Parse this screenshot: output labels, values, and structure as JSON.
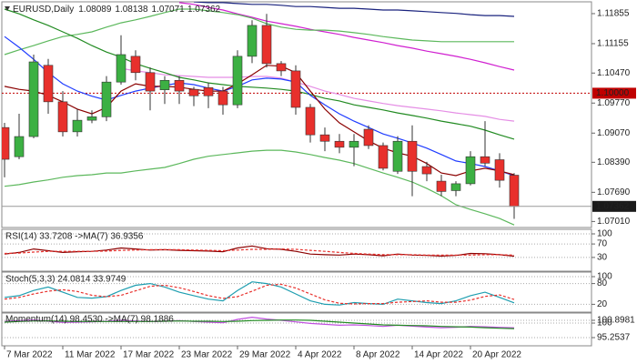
{
  "chart_data": [
    {
      "type": "candlestick",
      "title": "EURUSD,Daily",
      "categories": [
        "7 Mar 2022",
        null,
        null,
        null,
        "11 Mar 2022",
        null,
        null,
        null,
        "17 Mar 2022",
        null,
        null,
        null,
        "23 Mar 2022",
        null,
        null,
        null,
        "29 Mar 2022",
        null,
        null,
        null,
        "4 Apr 2022",
        null,
        null,
        null,
        "8 Apr 2022",
        null,
        null,
        null,
        "14 Apr 2022",
        null,
        null,
        null,
        "20 Apr 2022",
        null,
        null,
        null
      ],
      "open": [
        1.092,
        1.0852,
        1.0899,
        1.1065,
        1.098,
        1.091,
        1.0937,
        1.0945,
        1.1026,
        1.1086,
        1.1048,
        1.1008,
        1.103,
        1.1009,
        1.1013,
        1.1005,
        1.0973,
        1.1086,
        1.1158,
        1.1069,
        1.1052,
        1.0967,
        1.0903,
        1.0888,
        1.0874,
        1.0916,
        1.0878,
        1.0818,
        1.0888,
        1.0829,
        1.0795,
        1.0773,
        1.0789,
        1.0852,
        1.0845,
        1.08089
      ],
      "high": [
        1.0931,
        1.0952,
        1.109,
        1.108,
        1.1005,
        1.0963,
        1.096,
        1.104,
        1.1135,
        1.11,
        1.106,
        1.104,
        1.104,
        1.1015,
        1.1025,
        1.1015,
        1.11,
        1.117,
        1.1185,
        1.1075,
        1.1065,
        1.0975,
        1.092,
        1.0905,
        1.0905,
        1.0925,
        1.0885,
        1.09,
        1.0925,
        1.084,
        1.081,
        1.0795,
        1.0865,
        1.0935,
        1.086,
        1.08138
      ],
      "low": [
        1.0804,
        1.0846,
        1.0895,
        1.0952,
        1.0899,
        1.0899,
        1.093,
        1.0935,
        1.102,
        1.103,
        1.096,
        1.0975,
        1.0975,
        1.097,
        1.0965,
        1.095,
        1.0965,
        1.107,
        1.106,
        1.104,
        1.095,
        1.0885,
        1.0865,
        1.086,
        1.083,
        1.087,
        1.082,
        1.0812,
        1.076,
        1.0795,
        1.076,
        1.076,
        1.0785,
        1.083,
        1.078,
        1.07071
      ],
      "close": [
        1.0846,
        1.0899,
        1.1073,
        1.098,
        1.091,
        1.0937,
        1.0945,
        1.1026,
        1.109,
        1.1048,
        1.1005,
        1.103,
        1.1005,
        1.0994,
        1.0994,
        1.0973,
        1.1086,
        1.1158,
        1.1069,
        1.1052,
        1.0967,
        1.0903,
        1.0888,
        1.0874,
        1.0888,
        1.0878,
        1.0825,
        1.0888,
        1.0818,
        1.0812,
        1.0771,
        1.0789,
        1.0852,
        1.0837,
        1.0797,
        1.07362
      ],
      "up_color": "#3cb043",
      "down_color": "#e8302c",
      "wick_color": "#333333",
      "series": [
        {
          "color": "#1a237e",
          "values": [
            null,
            null,
            null,
            null,
            null,
            null,
            null,
            null,
            null,
            null,
            null,
            null,
            null,
            1.1213,
            1.1211,
            1.1211,
            1.1209,
            1.1207,
            1.1207,
            1.1205,
            1.1202,
            1.1202,
            1.12,
            1.1198,
            1.1198,
            1.1196,
            1.1194,
            1.1194,
            1.1192,
            1.119,
            1.1188,
            1.1186,
            1.1183,
            1.1181,
            1.1181,
            1.1179
          ]
        },
        {
          "color": "#d020d0",
          "values": [
            null,
            null,
            null,
            null,
            null,
            null,
            null,
            null,
            null,
            null,
            null,
            null,
            1.1211,
            1.1207,
            1.12,
            1.1194,
            1.1185,
            1.1177,
            1.1168,
            1.1162,
            1.1156,
            1.1149,
            1.1143,
            1.1137,
            1.113,
            1.1124,
            1.1118,
            1.1111,
            1.1105,
            1.1098,
            1.1092,
            1.1086,
            1.1079,
            1.1071,
            1.1062,
            1.1054
          ]
        },
        {
          "color": "#5cb85c",
          "values": [
            1.109,
            1.1101,
            1.1111,
            1.1122,
            1.1132,
            1.1137,
            1.1143,
            1.1154,
            1.1164,
            1.1171,
            1.1179,
            1.1188,
            1.1196,
            1.1196,
            1.1192,
            1.1188,
            1.1183,
            1.1175,
            1.1162,
            1.1154,
            1.1149,
            1.1147,
            1.1147,
            1.1145,
            1.1141,
            1.1137,
            1.1132,
            1.1128,
            1.1124,
            1.1122,
            1.112,
            1.112,
            1.112,
            1.112,
            1.112,
            1.112
          ]
        },
        {
          "color": "#5cb85c",
          "values": [
            1.0783,
            1.0787,
            1.0793,
            1.0798,
            1.0804,
            1.0808,
            1.081,
            1.0814,
            1.0814,
            1.0819,
            1.0823,
            1.0827,
            1.0836,
            1.0846,
            1.0853,
            1.0857,
            1.0861,
            1.0865,
            1.0867,
            1.0867,
            1.0863,
            1.0857,
            1.085,
            1.0844,
            1.0836,
            1.0825,
            1.0814,
            1.0804,
            1.0793,
            1.0778,
            1.0761,
            1.074,
            1.0729,
            1.0719,
            1.0708,
            1.0693
          ]
        },
        {
          "color": "#e58ee5",
          "values": [
            null,
            null,
            null,
            null,
            null,
            null,
            null,
            null,
            1.1058,
            1.1052,
            1.1048,
            1.1043,
            1.1041,
            1.1039,
            1.1037,
            1.1037,
            1.1037,
            1.1039,
            1.1039,
            1.1035,
            1.1026,
            1.1016,
            1.1005,
            1.0997,
            1.0988,
            1.0982,
            1.0976,
            1.0971,
            1.0967,
            1.0963,
            1.0959,
            1.0954,
            1.095,
            1.0946,
            1.0939,
            1.0935
          ]
        },
        {
          "color": "#228b22",
          "values": [
            1.1196,
            1.1185,
            1.1171,
            1.1158,
            1.1143,
            1.1128,
            1.1111,
            1.1096,
            1.1084,
            1.1069,
            1.1058,
            1.1048,
            1.1037,
            1.1031,
            1.1024,
            1.102,
            1.1016,
            1.1014,
            1.1012,
            1.1009,
            1.1005,
            1.0997,
            1.0988,
            1.0982,
            1.0973,
            1.0967,
            1.0961,
            1.0954,
            1.0948,
            1.0942,
            1.0935,
            1.0929,
            1.0923,
            1.0914,
            1.0903,
            1.0893
          ]
        },
        {
          "color": "#1f3cff",
          "values": [
            1.1132,
            1.1107,
            1.1079,
            1.1048,
            1.1022,
            1.1005,
            1.0993,
            1.0984,
            1.0995,
            1.1005,
            1.1012,
            1.1018,
            1.1024,
            1.102,
            1.1012,
            1.1005,
            1.1016,
            1.1031,
            1.1035,
            1.1033,
            1.1026,
            1.0995,
            1.0973,
            1.0952,
            1.0935,
            1.092,
            1.0905,
            1.0895,
            1.0884,
            1.0872,
            1.0857,
            1.0842,
            1.0836,
            1.0829,
            1.0819,
            1.0808
          ]
        },
        {
          "color": "#8b0000",
          "values": [
            1.1016,
            1.1009,
            1.1005,
            1.0995,
            1.098,
            1.0963,
            1.0952,
            1.0967,
            1.1005,
            1.1022,
            1.1016,
            1.1016,
            1.1014,
            1.1009,
            1.1005,
            1.1005,
            1.1022,
            1.1043,
            1.1065,
            1.1063,
            1.1048,
            1.1005,
            1.0963,
            1.0931,
            1.091,
            1.0889,
            1.0872,
            1.0861,
            1.0853,
            1.0836,
            1.0814,
            1.0808,
            1.0819,
            1.0825,
            1.0819,
            1.081
          ]
        }
      ],
      "hlines": [
        {
          "value": 1.1,
          "label": "1.10000",
          "color": "#c00000"
        }
      ],
      "ylim": [
        1.0687,
        1.1213
      ],
      "yticks": [
        {
          "value": 1.0701,
          "label": "1.07010"
        },
        {
          "value": 1.0769,
          "label": "1.07690"
        },
        {
          "value": 1.0839,
          "label": "1.08390"
        },
        {
          "value": 1.0907,
          "label": "1.09070"
        },
        {
          "value": 1.0977,
          "label": "1.09770"
        },
        {
          "value": 1.1047,
          "label": "1.10470"
        },
        1.11155,
        1.11855
      ]
    },
    {
      "type": "line",
      "title": "RSI(14) 33.7208 ->MA(7) 36.9356",
      "series": [
        {
          "color": "#8b0000",
          "values": [
            40,
            45,
            55,
            50,
            45,
            47,
            48,
            52,
            58,
            55,
            52,
            53,
            51,
            50,
            49,
            47,
            58,
            64,
            56,
            54,
            48,
            40,
            38,
            37,
            40,
            38,
            35,
            40,
            37,
            36,
            34,
            36,
            42,
            41,
            38,
            33.7208
          ]
        },
        {
          "color": "#e8302c",
          "dashed": true,
          "values": [
            42,
            43,
            46,
            48,
            48,
            48,
            48,
            49,
            51,
            52,
            53,
            53,
            53,
            52,
            51,
            50,
            52,
            54,
            54,
            55,
            54,
            51,
            48,
            45,
            42,
            40,
            38,
            38,
            38,
            37,
            37,
            37,
            37,
            38,
            38,
            36.9356
          ]
        }
      ],
      "ylim": [
        0,
        100
      ],
      "yticks": [
        30,
        70,
        100
      ],
      "grid": true
    },
    {
      "type": "line",
      "title": "Stoch(5,3,3) 24.0814 33.9749",
      "series": [
        {
          "color": "#1e9eb0",
          "values": [
            40,
            45,
            60,
            70,
            55,
            40,
            38,
            42,
            60,
            75,
            80,
            70,
            55,
            45,
            35,
            30,
            60,
            85,
            80,
            70,
            50,
            30,
            20,
            18,
            25,
            22,
            20,
            35,
            30,
            25,
            22,
            30,
            45,
            55,
            40,
            24.0814
          ]
        },
        {
          "color": "#e8302c",
          "dashed": true,
          "values": [
            35,
            40,
            50,
            58,
            62,
            57,
            46,
            42,
            46,
            59,
            72,
            75,
            68,
            57,
            45,
            37,
            42,
            58,
            75,
            78,
            67,
            50,
            33,
            23,
            21,
            22,
            22,
            26,
            28,
            30,
            26,
            26,
            32,
            43,
            47,
            33.9749
          ]
        }
      ],
      "ylim": [
        0,
        100
      ],
      "yticks": [
        20,
        80,
        100
      ],
      "grid": true
    },
    {
      "type": "line",
      "title": "Momentum(14) 98.4530 ->MA(7) 98.1886",
      "series": [
        {
          "color": "#c050e0",
          "values": [
            100.5,
            100.8,
            101,
            100.6,
            100.2,
            100.3,
            100.4,
            100.6,
            100.9,
            100.7,
            100.5,
            100.6,
            100.8,
            100.5,
            100.3,
            100.1,
            101.2,
            101.9,
            101.3,
            100.9,
            100.4,
            99.9,
            99.6,
            99.3,
            99.4,
            99.2,
            98.9,
            99.3,
            99.0,
            98.7,
            98.5,
            98.6,
            98.9,
            98.8,
            98.6,
            98.453
          ]
        },
        {
          "color": "#228b22",
          "values": [
            100.3,
            100.5,
            100.7,
            100.7,
            100.6,
            100.5,
            100.5,
            100.5,
            100.5,
            100.5,
            100.5,
            100.6,
            100.7,
            100.6,
            100.6,
            100.5,
            100.6,
            100.8,
            100.9,
            101.0,
            101.0,
            100.9,
            100.6,
            100.3,
            100.0,
            99.7,
            99.4,
            99.3,
            99.2,
            99.1,
            98.9,
            98.8,
            98.7,
            98.5,
            98.3,
            98.1886
          ]
        }
      ],
      "ylim": [
        93.17,
        102.68
      ],
      "yticks": [
        95.2537,
        100,
        100.8981
      ],
      "grid": true
    }
  ]
}
